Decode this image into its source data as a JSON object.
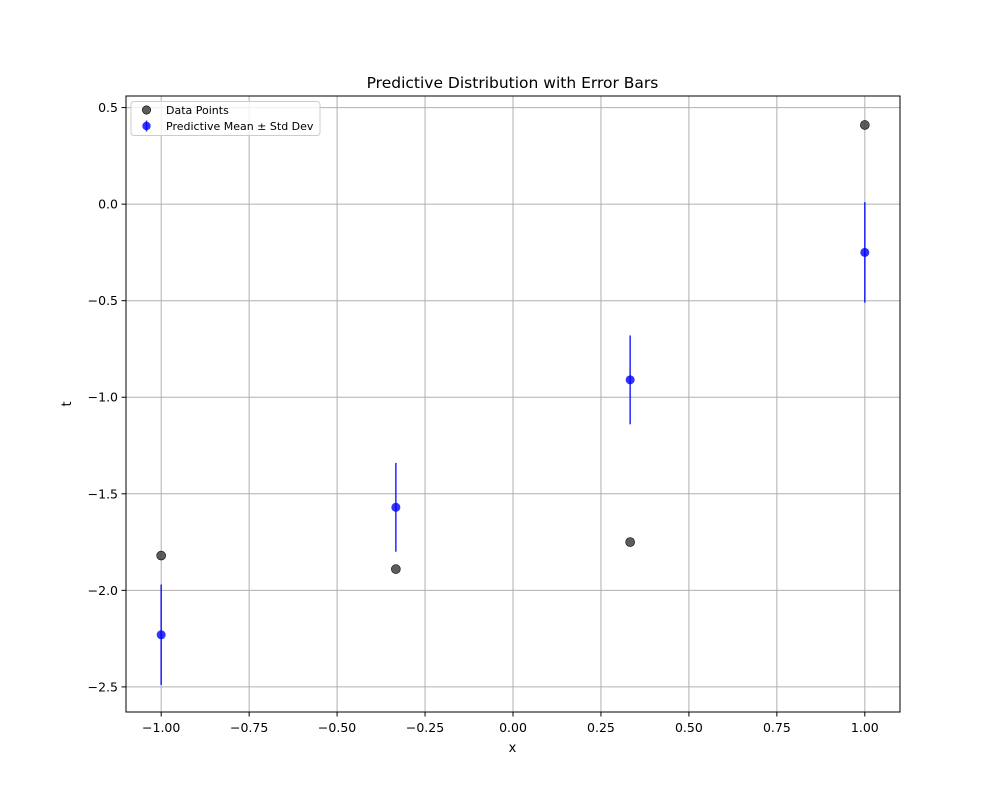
{
  "chart_data": {
    "type": "scatter",
    "title": "Predictive Distribution with Error Bars",
    "xlabel": "x",
    "ylabel": "t",
    "xlim": [
      -1.1,
      1.1
    ],
    "ylim": [
      -2.63,
      0.56
    ],
    "grid": true,
    "legend_position": "top-left",
    "xticks": [
      -1.0,
      -0.75,
      -0.5,
      -0.25,
      0.0,
      0.25,
      0.5,
      0.75,
      1.0
    ],
    "xtick_labels": [
      "−1.00",
      "−0.75",
      "−0.50",
      "−0.25",
      "0.00",
      "0.25",
      "0.50",
      "0.75",
      "1.00"
    ],
    "yticks": [
      0.5,
      0.0,
      -0.5,
      -1.0,
      -1.5,
      -2.0,
      -2.5
    ],
    "ytick_labels": [
      "0.5",
      "0.0",
      "−0.5",
      "−1.0",
      "−1.5",
      "−2.0",
      "−2.5"
    ],
    "series": [
      {
        "name": "Data Points",
        "kind": "scatter",
        "color": "#404040",
        "x": [
          -1.0,
          -0.333,
          0.333,
          1.0
        ],
        "y": [
          -1.82,
          -1.89,
          -1.75,
          0.41
        ]
      },
      {
        "name": "Predictive Mean ± Std Dev",
        "kind": "errorbar",
        "color": "#0000ff",
        "x": [
          -1.0,
          -0.333,
          0.333,
          1.0
        ],
        "y": [
          -2.23,
          -1.57,
          -0.91,
          -0.25
        ],
        "yerr": [
          0.26,
          0.23,
          0.23,
          0.26
        ]
      }
    ]
  }
}
